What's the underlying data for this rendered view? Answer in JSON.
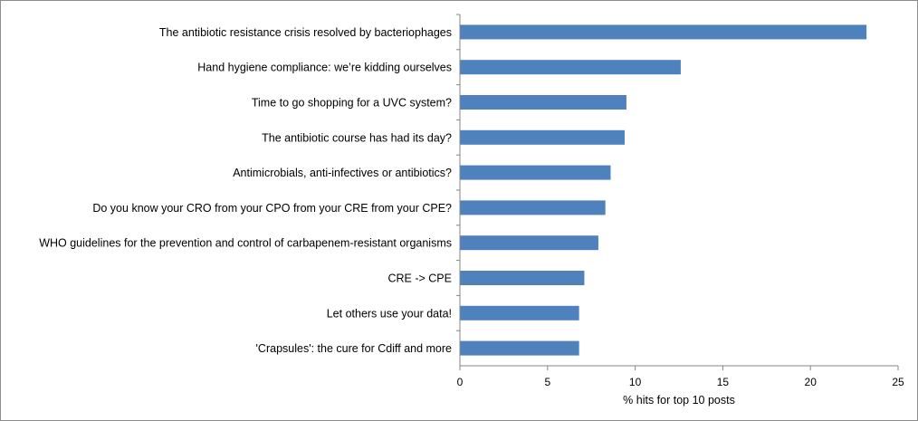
{
  "chart_data": {
    "type": "bar",
    "orientation": "horizontal",
    "title": "",
    "xlabel": "% hits for top 10 posts",
    "ylabel": "",
    "xlim": [
      0,
      25
    ],
    "xticks": [
      0,
      5,
      10,
      15,
      20,
      25
    ],
    "grid": false,
    "legend": "none",
    "bar_color": "#4f81bd",
    "categories": [
      "The antibiotic resistance crisis resolved by bacteriophages",
      "Hand hygiene compliance: we’re kidding ourselves",
      "Time to go shopping for a UVC system?",
      "The antibiotic course has had its day?",
      "Antimicrobials, anti-infectives or antibiotics?",
      "Do you know your CRO from your CPO from your CRE from your CPE?",
      "WHO guidelines for the prevention and control of carbapenem-resistant organisms",
      "CRE -> CPE",
      "Let others use your data!",
      "'Crapsules': the cure for Cdiff and more"
    ],
    "values": [
      23.2,
      12.6,
      9.5,
      9.4,
      8.6,
      8.3,
      7.9,
      7.1,
      6.8,
      6.8
    ]
  }
}
